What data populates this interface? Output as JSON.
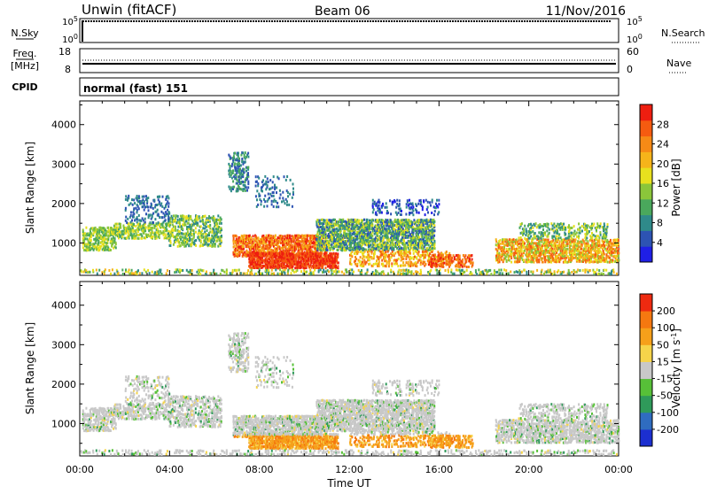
{
  "header": {
    "station": "Unwin (fitACF)",
    "beam": "Beam 06",
    "date": "11/Nov/2016"
  },
  "panels": {
    "nsky": {
      "label": "N.Sky",
      "ticks": [
        "10^5",
        "10^0"
      ],
      "right_ticks": [
        "10^5",
        "10^0"
      ],
      "right_label": "N.Search"
    },
    "freq": {
      "label_top": "Freq.",
      "label_unit": "[MHz]",
      "ticks": [
        "18",
        "8"
      ],
      "right_ticks": [
        "60",
        "0"
      ],
      "right_label": "Nave"
    },
    "cpid": {
      "label": "CPID",
      "text": "normal (fast) 151"
    }
  },
  "chart_data": [
    {
      "type": "heatmap",
      "name": "power",
      "ylabel": "Slant Range [km]",
      "yticks": [
        1000,
        2000,
        3000,
        4000
      ],
      "ylim": [
        180,
        4600
      ],
      "xlim": [
        0,
        24
      ],
      "colorbar": {
        "label": "Power [dB]",
        "ticks": [
          "4",
          "8",
          "12",
          "16",
          "20",
          "24",
          "28"
        ],
        "colors": [
          "#1f1fe6",
          "#2d53b3",
          "#2f8a8a",
          "#4aa85c",
          "#8bc63a",
          "#e8e01e",
          "#f6b41a",
          "#f68a16",
          "#f55b10",
          "#ee1e10"
        ]
      }
    },
    {
      "type": "heatmap",
      "name": "velocity",
      "ylabel": "Slant Range [km]",
      "yticks": [
        1000,
        2000,
        3000,
        4000
      ],
      "ylim": [
        180,
        4600
      ],
      "xlim": [
        0,
        24
      ],
      "colorbar": {
        "label": "Velocity [m s^-1]",
        "ticks": [
          "200",
          "100",
          "50",
          "15",
          "-15",
          "-50",
          "-100",
          "-200"
        ],
        "colors": [
          "#1c2fd0",
          "#2f6cc0",
          "#2f9a5a",
          "#57c038",
          "#c8c8c8",
          "#f6d44a",
          "#f6a01a",
          "#f57810",
          "#ee2a10"
        ]
      }
    }
  ],
  "xaxis": {
    "ticks": [
      "00:00",
      "04:00",
      "08:00",
      "12:00",
      "16:00",
      "20:00",
      "00:00"
    ],
    "label": "Time UT"
  }
}
